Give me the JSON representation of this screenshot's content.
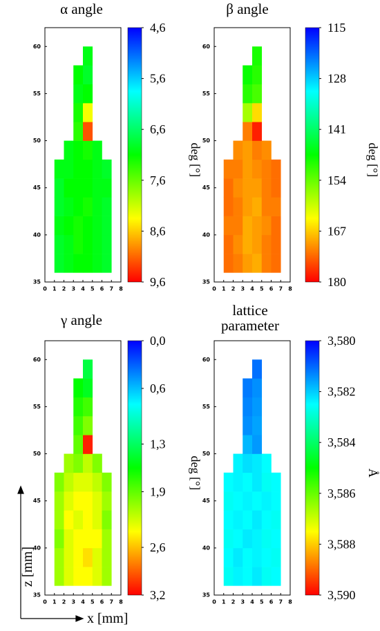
{
  "chart_data": [
    {
      "type": "heatmap",
      "title": "α angle",
      "colorbar_label": "deg [°]",
      "xlim": [
        0,
        8
      ],
      "xticks": [
        0,
        1,
        2,
        3,
        4,
        5,
        6,
        7,
        8
      ],
      "ylim": [
        35,
        62
      ],
      "yticks": [
        35,
        40,
        45,
        50,
        55,
        60
      ],
      "x": [
        1.5,
        2.5,
        3.5,
        4.5,
        5.5,
        6.5
      ],
      "y": [
        37,
        39,
        41,
        43,
        45,
        47,
        49,
        51,
        53,
        55,
        57,
        59
      ],
      "z": [
        [
          6.9,
          7.0,
          7.1,
          7.1,
          7.0,
          6.9
        ],
        [
          6.9,
          7.0,
          7.2,
          7.1,
          7.0,
          6.9
        ],
        [
          7.0,
          7.1,
          7.2,
          7.1,
          7.0,
          6.9
        ],
        [
          6.9,
          7.0,
          7.1,
          7.2,
          7.0,
          6.9
        ],
        [
          6.9,
          7.1,
          7.1,
          7.1,
          7.0,
          7.0
        ],
        [
          7.0,
          7.0,
          7.1,
          7.1,
          7.0,
          6.9
        ],
        [
          null,
          7.0,
          7.1,
          7.2,
          7.0,
          null
        ],
        [
          null,
          null,
          7.3,
          9.2,
          null,
          null
        ],
        [
          null,
          null,
          7.2,
          8.3,
          null,
          null
        ],
        [
          null,
          null,
          7.0,
          7.1,
          null,
          null
        ],
        [
          null,
          null,
          7.1,
          6.9,
          null,
          null
        ],
        [
          null,
          null,
          null,
          7.0,
          null,
          null
        ]
      ],
      "colors": [
        "#0000ff",
        "#00ffff",
        "#00ff00",
        "#ffff00",
        "#ff0000"
      ],
      "clim": [
        4.6,
        9.6
      ],
      "cticks": [
        {
          "value": 4.6,
          "label": "4,6"
        },
        {
          "value": 5.6,
          "label": "5,6"
        },
        {
          "value": 6.6,
          "label": "6,6"
        },
        {
          "value": 7.6,
          "label": "7,6"
        },
        {
          "value": 8.6,
          "label": "8,6"
        },
        {
          "value": 9.6,
          "label": "9,6"
        }
      ]
    },
    {
      "type": "heatmap",
      "title": "β angle",
      "colorbar_label": "deg [°]",
      "xlim": [
        0,
        8
      ],
      "xticks": [
        0,
        1,
        2,
        3,
        4,
        5,
        6,
        7,
        8
      ],
      "ylim": [
        35,
        62
      ],
      "yticks": [
        35,
        40,
        45,
        50,
        55,
        60
      ],
      "x": [
        1.5,
        2.5,
        3.5,
        4.5,
        5.5,
        6.5
      ],
      "y": [
        37,
        39,
        41,
        43,
        45,
        47,
        49,
        51,
        53,
        55,
        57,
        59
      ],
      "z": [
        [
          173,
          172,
          170,
          169,
          172,
          173
        ],
        [
          173,
          171,
          169,
          170,
          172,
          173
        ],
        [
          172,
          172,
          169,
          170,
          171,
          173
        ],
        [
          173,
          172,
          170,
          169,
          172,
          172
        ],
        [
          173,
          171,
          170,
          170,
          172,
          173
        ],
        [
          172,
          172,
          170,
          171,
          172,
          173
        ],
        [
          null,
          171,
          170,
          172,
          171,
          null
        ],
        [
          null,
          null,
          172,
          178,
          null,
          null
        ],
        [
          null,
          null,
          158,
          166,
          null,
          null
        ],
        [
          null,
          null,
          150,
          152,
          null,
          null
        ],
        [
          null,
          null,
          148,
          150,
          null,
          null
        ],
        [
          null,
          null,
          null,
          149,
          null,
          null
        ]
      ],
      "colors": [
        "#0000ff",
        "#00ffff",
        "#00ff00",
        "#ffff00",
        "#ff0000"
      ],
      "clim": [
        115,
        180
      ],
      "cticks": [
        115,
        128,
        141,
        154,
        167,
        180
      ]
    },
    {
      "type": "heatmap",
      "title": "γ angle",
      "colorbar_label": "deg [°]",
      "xlabel": "x [mm]",
      "ylabel": "z [mm]",
      "xlim": [
        0,
        8
      ],
      "xticks": [
        0,
        1,
        2,
        3,
        4,
        5,
        6,
        7,
        8
      ],
      "ylim": [
        35,
        62
      ],
      "yticks": [
        35,
        40,
        45,
        50,
        55,
        60
      ],
      "x": [
        1.5,
        2.5,
        3.5,
        4.5,
        5.5,
        6.5
      ],
      "y": [
        37,
        39,
        41,
        43,
        45,
        47,
        49,
        51,
        53,
        55,
        57,
        59
      ],
      "z": [
        [
          2.1,
          2.3,
          2.4,
          2.4,
          2.3,
          2.1
        ],
        [
          2.1,
          2.3,
          2.4,
          2.5,
          2.3,
          2.1
        ],
        [
          2.0,
          2.3,
          2.4,
          2.4,
          2.4,
          2.1
        ],
        [
          2.1,
          2.4,
          2.3,
          2.4,
          2.3,
          2.0
        ],
        [
          2.1,
          2.3,
          2.4,
          2.4,
          2.3,
          2.1
        ],
        [
          2.0,
          2.2,
          2.3,
          2.3,
          2.2,
          2.0
        ],
        [
          null,
          2.1,
          2.0,
          2.2,
          2.0,
          null
        ],
        [
          null,
          null,
          1.9,
          3.1,
          null,
          null
        ],
        [
          null,
          null,
          1.8,
          2.0,
          null,
          null
        ],
        [
          null,
          null,
          1.7,
          1.8,
          null,
          null
        ],
        [
          null,
          null,
          1.6,
          1.5,
          null,
          null
        ],
        [
          null,
          null,
          null,
          1.4,
          null,
          null
        ]
      ],
      "colors": [
        "#0000ff",
        "#00ffff",
        "#00ff00",
        "#ffff00",
        "#ff0000"
      ],
      "clim": [
        0.0,
        3.2
      ],
      "cticks": [
        {
          "value": 0.0,
          "label": "0,0"
        },
        {
          "value": 0.6,
          "label": "0,6"
        },
        {
          "value": 1.3,
          "label": "1,3"
        },
        {
          "value": 1.9,
          "label": "1,9"
        },
        {
          "value": 2.6,
          "label": "2,6"
        },
        {
          "value": 3.2,
          "label": "3,2"
        }
      ]
    },
    {
      "type": "heatmap",
      "title": [
        "lattice",
        "parameter"
      ],
      "colorbar_label": "Å",
      "xlim": [
        0,
        8
      ],
      "xticks": [
        0,
        1,
        2,
        3,
        4,
        5,
        6,
        7,
        8
      ],
      "ylim": [
        35,
        62
      ],
      "yticks": [
        35,
        40,
        45,
        50,
        55,
        60
      ],
      "x": [
        1.5,
        2.5,
        3.5,
        4.5,
        5.5,
        6.5
      ],
      "y": [
        37,
        39,
        41,
        43,
        45,
        47,
        49,
        51,
        53,
        55,
        57,
        59
      ],
      "z": [
        [
          3.5826,
          3.5824,
          3.5825,
          3.5823,
          3.5826,
          3.5825
        ],
        [
          3.5825,
          3.5823,
          3.5825,
          3.5824,
          3.5825,
          3.5826
        ],
        [
          3.5826,
          3.5825,
          3.5823,
          3.5824,
          3.5826,
          3.5825
        ],
        [
          3.5825,
          3.5824,
          3.5825,
          3.5823,
          3.5825,
          3.5826
        ],
        [
          3.5826,
          3.5825,
          3.5824,
          3.5825,
          3.5824,
          3.5825
        ],
        [
          3.5825,
          3.5824,
          3.5825,
          3.5823,
          3.5826,
          3.5825
        ],
        [
          null,
          3.5824,
          3.5822,
          3.5823,
          3.5825,
          null
        ],
        [
          null,
          null,
          3.5818,
          3.5815,
          null,
          null
        ],
        [
          null,
          null,
          3.5814,
          3.5816,
          null,
          null
        ],
        [
          null,
          null,
          3.5813,
          3.5815,
          null,
          null
        ],
        [
          null,
          null,
          3.5812,
          3.5814,
          null,
          null
        ],
        [
          null,
          null,
          null,
          3.5811,
          null,
          null
        ]
      ],
      "colors": [
        "#0000ff",
        "#00ffff",
        "#00ff00",
        "#ffff00",
        "#ff0000"
      ],
      "clim": [
        3.58,
        3.59
      ],
      "cticks": [
        {
          "value": 3.58,
          "label": "3,580"
        },
        {
          "value": 3.582,
          "label": "3,582"
        },
        {
          "value": 3.584,
          "label": "3,584"
        },
        {
          "value": 3.586,
          "label": "3,586"
        },
        {
          "value": 3.588,
          "label": "3,588"
        },
        {
          "value": 3.59,
          "label": "3,590"
        }
      ]
    }
  ]
}
